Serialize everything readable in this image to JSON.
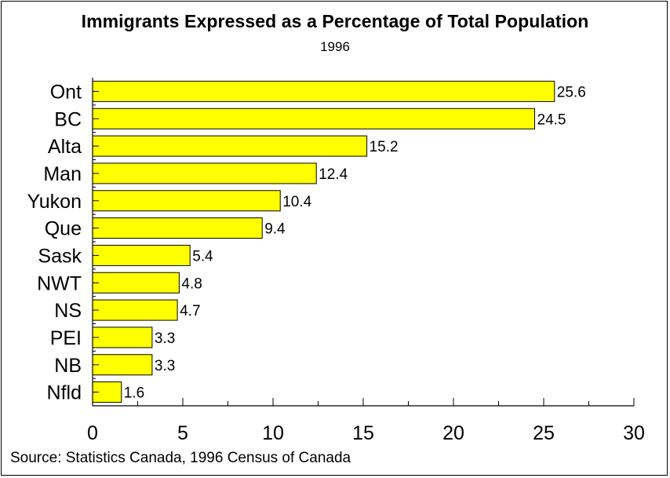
{
  "chart_data": {
    "type": "bar",
    "orientation": "horizontal",
    "title": "Immigrants Expressed as a Percentage of Total Population",
    "subtitle": "1996",
    "categories": [
      "Ont",
      "BC",
      "Alta",
      "Man",
      "Yukon",
      "Que",
      "Sask",
      "NWT",
      "NS",
      "PEI",
      "NB",
      "Nfld"
    ],
    "values": [
      25.6,
      24.5,
      15.2,
      12.4,
      10.4,
      9.4,
      5.4,
      4.8,
      4.7,
      3.3,
      3.3,
      1.6
    ],
    "value_labels": [
      "25.6",
      "24.5",
      "15.2",
      "12.4",
      "10.4",
      "9.4",
      "5.4",
      "4.8",
      "4.7",
      "3.3",
      "3.3",
      "1.6"
    ],
    "xlim": [
      0,
      30
    ],
    "x_ticks": [
      "0",
      "5",
      "10",
      "15",
      "20",
      "25",
      "30"
    ],
    "xlabel": "",
    "ylabel": "",
    "grid": false,
    "bar_color": "#ffff00",
    "source": "Source: Statistics Canada, 1996 Census of Canada"
  }
}
